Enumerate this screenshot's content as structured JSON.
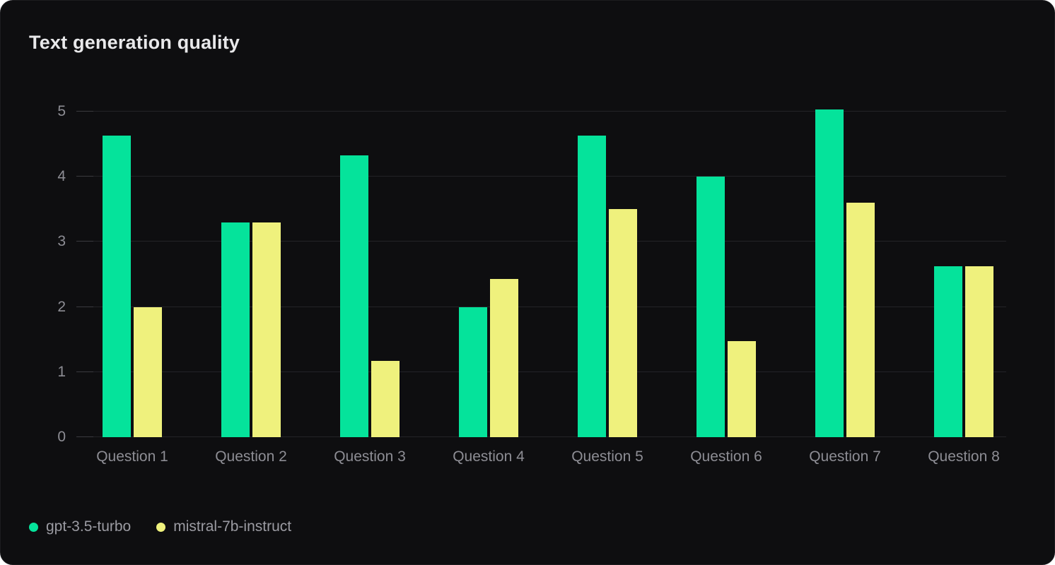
{
  "card": {
    "title": "Text generation quality"
  },
  "chart_data": {
    "type": "bar",
    "title": "Text generation quality",
    "categories": [
      "Question 1",
      "Question 2",
      "Question 3",
      "Question 4",
      "Question 5",
      "Question 6",
      "Question 7",
      "Question 8"
    ],
    "series": [
      {
        "name": "gpt-3.5-turbo",
        "color": "#05e39b",
        "values": [
          4.63,
          3.3,
          4.33,
          2.0,
          4.63,
          4.0,
          5.03,
          2.63
        ]
      },
      {
        "name": "mistral-7b-instruct",
        "color": "#eff17d",
        "values": [
          2.0,
          3.3,
          1.17,
          2.43,
          3.5,
          1.47,
          3.6,
          2.63
        ]
      }
    ],
    "ylim": [
      0,
      5
    ],
    "yticks": [
      0,
      1,
      2,
      3,
      4,
      5
    ],
    "grid": true,
    "legend_position": "bottom-left"
  },
  "colors": {
    "card_background": "#0e0e10",
    "gridline": "#232327",
    "axis_label": "#8d8d94",
    "title_text": "#e8e8ea",
    "legend_text": "#9b9ba2",
    "series_green": "#05e39b",
    "series_yellow": "#eff17d"
  }
}
